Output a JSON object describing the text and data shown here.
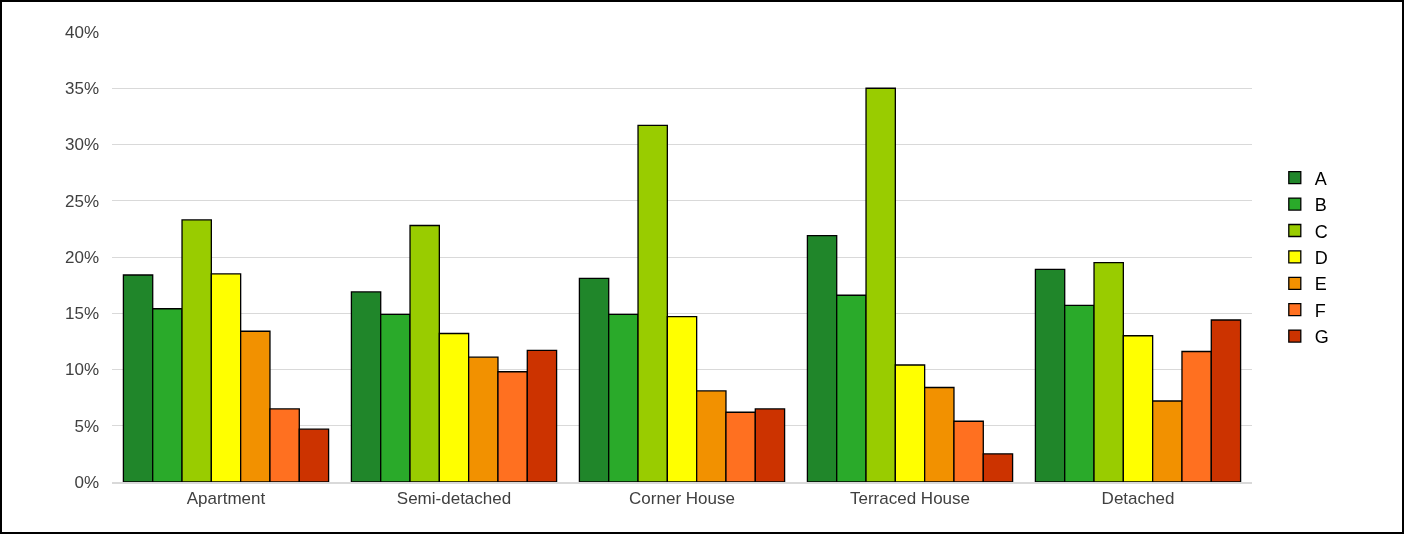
{
  "chart_data": {
    "type": "bar",
    "categories": [
      "Apartment",
      "Semi-detached",
      "Corner House",
      "Terraced House",
      "Detached"
    ],
    "series": [
      {
        "name": "A",
        "color": "#20862a",
        "values": [
          18.4,
          16.9,
          18.1,
          21.9,
          18.9
        ]
      },
      {
        "name": "B",
        "color": "#2aaa2a",
        "values": [
          15.4,
          14.9,
          14.9,
          16.6,
          15.7
        ]
      },
      {
        "name": "C",
        "color": "#99cc00",
        "values": [
          23.3,
          22.8,
          31.7,
          35.0,
          19.5
        ]
      },
      {
        "name": "D",
        "color": "#ffff00",
        "values": [
          18.5,
          13.2,
          14.7,
          10.4,
          13.0
        ]
      },
      {
        "name": "E",
        "color": "#f29100",
        "values": [
          13.4,
          11.1,
          8.1,
          8.4,
          7.2
        ]
      },
      {
        "name": "F",
        "color": "#ff7020",
        "values": [
          6.5,
          9.8,
          6.2,
          5.4,
          11.6
        ]
      },
      {
        "name": "G",
        "color": "#cc3300",
        "values": [
          4.7,
          11.7,
          6.5,
          2.5,
          14.4
        ]
      }
    ],
    "ylim": [
      0,
      40
    ],
    "yticks": [
      {
        "value": 0,
        "label": "0%"
      },
      {
        "value": 5,
        "label": "5%"
      },
      {
        "value": 10,
        "label": "10%"
      },
      {
        "value": 15,
        "label": "15%"
      },
      {
        "value": 20,
        "label": "20%"
      },
      {
        "value": 25,
        "label": "25%"
      },
      {
        "value": 30,
        "label": "30%"
      },
      {
        "value": 35,
        "label": "35%"
      },
      {
        "value": 40,
        "label": "40%"
      }
    ],
    "grid": "y",
    "legend": "right"
  }
}
